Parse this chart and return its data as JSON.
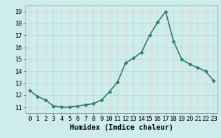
{
  "x": [
    0,
    1,
    2,
    3,
    4,
    5,
    6,
    7,
    8,
    9,
    10,
    11,
    12,
    13,
    14,
    15,
    16,
    17,
    18,
    19,
    20,
    21,
    22,
    23
  ],
  "y": [
    12.4,
    11.9,
    11.6,
    11.1,
    11.0,
    11.0,
    11.1,
    11.2,
    11.3,
    11.6,
    12.3,
    13.1,
    14.7,
    15.1,
    15.6,
    17.0,
    18.1,
    19.0,
    16.5,
    15.0,
    14.6,
    14.3,
    14.0,
    13.2
  ],
  "line_color": "#2e7d6e",
  "marker": "D",
  "marker_size": 2.5,
  "bg_color": "#ceecea",
  "grid_color": "#e8c8c8",
  "xlabel": "Humidex (Indice chaleur)",
  "xlim": [
    -0.5,
    23.5
  ],
  "ylim": [
    10.5,
    19.5
  ],
  "yticks": [
    11,
    12,
    13,
    14,
    15,
    16,
    17,
    18,
    19
  ],
  "xticks": [
    0,
    1,
    2,
    3,
    4,
    5,
    6,
    7,
    8,
    9,
    10,
    11,
    12,
    13,
    14,
    15,
    16,
    17,
    18,
    19,
    20,
    21,
    22,
    23
  ],
  "xlabel_fontsize": 7.5,
  "tick_fontsize": 6.5,
  "line_width": 1.2
}
